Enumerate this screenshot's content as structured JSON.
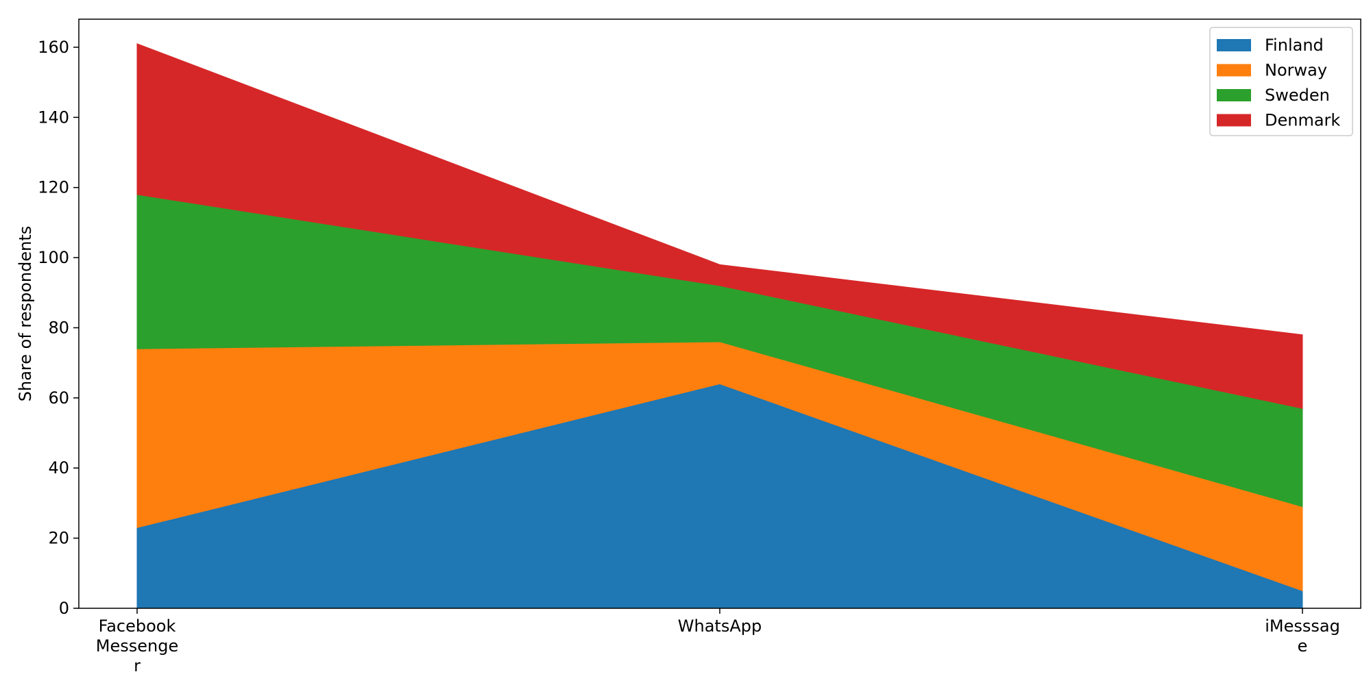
{
  "chart_data": {
    "type": "area",
    "stacked": true,
    "title": "",
    "xlabel": "",
    "ylabel": "Share of respondents",
    "categories": [
      "Facebook Messenger",
      "WhatsApp",
      "iMesssage"
    ],
    "category_tick_lines": [
      [
        "Facebook",
        "Messenge",
        "r"
      ],
      [
        "WhatsApp"
      ],
      [
        "iMesssag",
        "e"
      ]
    ],
    "ylim": [
      0,
      168
    ],
    "yticks": [
      0,
      20,
      40,
      60,
      80,
      100,
      120,
      140,
      160
    ],
    "legend_position": "top-right",
    "grid": false,
    "series": [
      {
        "name": "Finland",
        "color": "#1f77b4",
        "values": [
          23,
          64,
          5
        ]
      },
      {
        "name": "Norway",
        "color": "#ff7f0e",
        "values": [
          51,
          12,
          24
        ]
      },
      {
        "name": "Sweden",
        "color": "#2ca02c",
        "values": [
          44,
          16,
          28
        ]
      },
      {
        "name": "Denmark",
        "color": "#d62728",
        "values": [
          43,
          6,
          21
        ]
      }
    ]
  }
}
